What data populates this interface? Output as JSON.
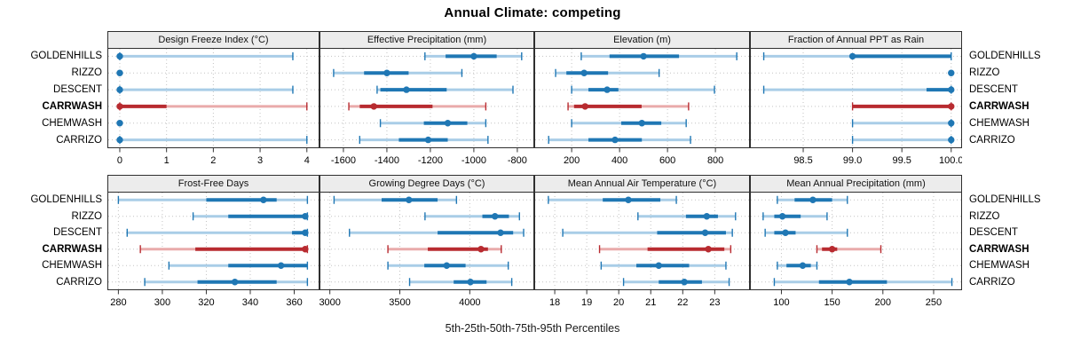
{
  "title": "Annual Climate: competing",
  "caption": "5th-25th-50th-75th-95th Percentiles",
  "sites": [
    "GOLDENHILLS",
    "RIZZO",
    "DESCENT",
    "CARRWASH",
    "CHEMWASH",
    "CARRIZO"
  ],
  "highlight_site": "CARRWASH",
  "colors": {
    "series_blue": "#1f77b4",
    "series_blue_band": "#a9cde7",
    "highlight_red": "#b82b30",
    "highlight_red_band": "#e9abab",
    "header_bg": "#ececec",
    "panel_border": "#2f2f2f",
    "grid": "#c3c3c3",
    "tick": "#333333"
  },
  "chart_data": [
    {
      "type": "percentile_range",
      "title": "Design Freeze Index (°C)",
      "row": "top",
      "percentiles": [
        "5th",
        "25th",
        "50th",
        "75th",
        "95th"
      ],
      "xlim": [
        -0.265,
        4.27
      ],
      "ticks": [
        0,
        1,
        2,
        3,
        4
      ],
      "tick_labels": [
        "0",
        "1",
        "2",
        "3",
        "4"
      ],
      "series": [
        {
          "name": "GOLDENHILLS",
          "values": [
            0,
            0,
            0,
            0,
            3.7
          ]
        },
        {
          "name": "RIZZO",
          "values": [
            0,
            0,
            0,
            0,
            0
          ]
        },
        {
          "name": "DESCENT",
          "values": [
            0,
            0,
            0,
            0,
            3.7
          ]
        },
        {
          "name": "CARRWASH",
          "values": [
            0,
            0,
            0,
            1,
            4
          ]
        },
        {
          "name": "CHEMWASH",
          "values": [
            0,
            0,
            0,
            0,
            0
          ]
        },
        {
          "name": "CARRIZO",
          "values": [
            0,
            0,
            0,
            0,
            4
          ]
        }
      ]
    },
    {
      "type": "percentile_range",
      "title": "Effective Precipitation (mm)",
      "row": "top",
      "percentiles": [
        "5th",
        "25th",
        "50th",
        "75th",
        "95th"
      ],
      "xlim": [
        -1710,
        -722
      ],
      "ticks": [
        -1600,
        -1400,
        -1200,
        -1000,
        -800
      ],
      "tick_labels": [
        "-1600",
        "-1400",
        "-1200",
        "-1000",
        "-800"
      ],
      "series": [
        {
          "name": "GOLDENHILLS",
          "values": [
            -1225,
            -1130,
            -1000,
            -895,
            -780
          ]
        },
        {
          "name": "RIZZO",
          "values": [
            -1645,
            -1505,
            -1400,
            -1300,
            -1055
          ]
        },
        {
          "name": "DESCENT",
          "values": [
            -1445,
            -1430,
            -1310,
            -1125,
            -820
          ]
        },
        {
          "name": "CARRWASH",
          "values": [
            -1575,
            -1525,
            -1460,
            -1190,
            -945
          ]
        },
        {
          "name": "CHEMWASH",
          "values": [
            -1430,
            -1230,
            -1120,
            -1030,
            -945
          ]
        },
        {
          "name": "CARRIZO",
          "values": [
            -1525,
            -1345,
            -1210,
            -1120,
            -935
          ]
        }
      ]
    },
    {
      "type": "percentile_range",
      "title": "Elevation (m)",
      "row": "top",
      "percentiles": [
        "5th",
        "25th",
        "50th",
        "75th",
        "95th"
      ],
      "xlim": [
        44,
        944
      ],
      "ticks": [
        200,
        400,
        600,
        800
      ],
      "tick_labels": [
        "200",
        "400",
        "600",
        "800"
      ],
      "series": [
        {
          "name": "GOLDENHILLS",
          "values": [
            240,
            358,
            500,
            648,
            889
          ]
        },
        {
          "name": "RIZZO",
          "values": [
            133,
            178,
            252,
            352,
            565
          ]
        },
        {
          "name": "DESCENT",
          "values": [
            200,
            270,
            348,
            395,
            796
          ]
        },
        {
          "name": "CARRWASH",
          "values": [
            185,
            210,
            256,
            492,
            688
          ]
        },
        {
          "name": "CHEMWASH",
          "values": [
            200,
            407,
            493,
            574,
            678
          ]
        },
        {
          "name": "CARRIZO",
          "values": [
            104,
            270,
            381,
            493,
            696
          ]
        }
      ]
    },
    {
      "type": "percentile_range",
      "title": "Fraction of Annual PPT as Rain",
      "row": "top",
      "percentiles": [
        "5th",
        "25th",
        "50th",
        "75th",
        "95th"
      ],
      "xlim": [
        97.96,
        100.11
      ],
      "ticks": [
        98.5,
        99.0,
        99.5,
        100.0
      ],
      "tick_labels": [
        "98.5",
        "99.0",
        "99.5",
        "100.0"
      ],
      "series": [
        {
          "name": "GOLDENHILLS",
          "values": [
            98.1,
            99.0,
            99.0,
            100.0,
            100.0
          ]
        },
        {
          "name": "RIZZO",
          "values": [
            100.0,
            100.0,
            100.0,
            100.0,
            100.0
          ]
        },
        {
          "name": "DESCENT",
          "values": [
            98.1,
            99.75,
            100.0,
            100.0,
            100.0
          ]
        },
        {
          "name": "CARRWASH",
          "values": [
            99.0,
            99.0,
            100.0,
            100.0,
            100.0
          ]
        },
        {
          "name": "CHEMWASH",
          "values": [
            99.0,
            100.0,
            100.0,
            100.0,
            100.0
          ]
        },
        {
          "name": "CARRIZO",
          "values": [
            99.0,
            100.0,
            100.0,
            100.0,
            100.0
          ]
        }
      ]
    },
    {
      "type": "percentile_range",
      "title": "Frost-Free Days",
      "row": "bottom",
      "percentiles": [
        "5th",
        "25th",
        "50th",
        "75th",
        "95th"
      ],
      "xlim": [
        275,
        371.5
      ],
      "ticks": [
        280,
        300,
        320,
        340,
        360
      ],
      "tick_labels": [
        "280",
        "300",
        "320",
        "340",
        "360"
      ],
      "series": [
        {
          "name": "GOLDENHILLS",
          "values": [
            280,
            320,
            346,
            352,
            366
          ]
        },
        {
          "name": "RIZZO",
          "values": [
            314,
            330,
            365,
            366,
            366
          ]
        },
        {
          "name": "DESCENT",
          "values": [
            284,
            359,
            365,
            366,
            366
          ]
        },
        {
          "name": "CARRWASH",
          "values": [
            290,
            315,
            365,
            366,
            366
          ]
        },
        {
          "name": "CHEMWASH",
          "values": [
            303,
            330,
            354,
            366,
            366
          ]
        },
        {
          "name": "CARRIZO",
          "values": [
            292,
            316,
            333,
            352,
            366
          ]
        }
      ]
    },
    {
      "type": "percentile_range",
      "title": "Growing Degree Days (°C)",
      "row": "bottom",
      "percentiles": [
        "5th",
        "25th",
        "50th",
        "75th",
        "95th"
      ],
      "xlim": [
        2926,
        4461
      ],
      "ticks": [
        3000,
        3500,
        4000
      ],
      "tick_labels": [
        "3000",
        "3500",
        "4000"
      ],
      "series": [
        {
          "name": "GOLDENHILLS",
          "values": [
            3030,
            3370,
            3565,
            3770,
            3905
          ]
        },
        {
          "name": "RIZZO",
          "values": [
            3680,
            4090,
            4180,
            4280,
            4355
          ]
        },
        {
          "name": "DESCENT",
          "values": [
            3140,
            3770,
            4220,
            4310,
            4385
          ]
        },
        {
          "name": "CARRWASH",
          "values": [
            3415,
            3700,
            4080,
            4130,
            4225
          ]
        },
        {
          "name": "CHEMWASH",
          "values": [
            3415,
            3675,
            3835,
            3970,
            4275
          ]
        },
        {
          "name": "CARRIZO",
          "values": [
            3570,
            3885,
            4005,
            4120,
            4300
          ]
        }
      ]
    },
    {
      "type": "percentile_range",
      "title": "Mean Annual Air Temperature (°C)",
      "row": "bottom",
      "percentiles": [
        "5th",
        "25th",
        "50th",
        "75th",
        "95th"
      ],
      "xlim": [
        17.36,
        24.1
      ],
      "ticks": [
        18,
        19,
        20,
        21,
        22,
        23
      ],
      "tick_labels": [
        "18",
        "19",
        "20",
        "21",
        "22",
        "23"
      ],
      "series": [
        {
          "name": "GOLDENHILLS",
          "values": [
            17.8,
            19.5,
            20.3,
            21.3,
            21.8
          ]
        },
        {
          "name": "RIZZO",
          "values": [
            20.6,
            22.1,
            22.75,
            23.1,
            23.65
          ]
        },
        {
          "name": "DESCENT",
          "values": [
            18.25,
            21.2,
            22.7,
            23.35,
            23.55
          ]
        },
        {
          "name": "CARRWASH",
          "values": [
            19.4,
            20.9,
            22.8,
            23.3,
            23.5
          ]
        },
        {
          "name": "CHEMWASH",
          "values": [
            19.45,
            20.55,
            21.25,
            22.2,
            23.35
          ]
        },
        {
          "name": "CARRIZO",
          "values": [
            20.15,
            21.25,
            22.05,
            22.6,
            23.45
          ]
        }
      ]
    },
    {
      "type": "percentile_range",
      "title": "Mean Annual Precipitation (mm)",
      "row": "bottom",
      "percentiles": [
        "5th",
        "25th",
        "50th",
        "75th",
        "95th"
      ],
      "xlim": [
        69,
        278
      ],
      "ticks": [
        100,
        150,
        200,
        250
      ],
      "tick_labels": [
        "100",
        "150",
        "200",
        "250"
      ],
      "series": [
        {
          "name": "GOLDENHILLS",
          "values": [
            96,
            113,
            131,
            150,
            165
          ]
        },
        {
          "name": "RIZZO",
          "values": [
            82,
            93,
            101,
            119,
            145
          ]
        },
        {
          "name": "DESCENT",
          "values": [
            84,
            93,
            104,
            114,
            165
          ]
        },
        {
          "name": "CARRWASH",
          "values": [
            135,
            140,
            150,
            155,
            198
          ]
        },
        {
          "name": "CHEMWASH",
          "values": [
            96,
            105,
            121,
            129,
            135
          ]
        },
        {
          "name": "CARRIZO",
          "values": [
            93,
            137,
            167,
            204,
            268
          ]
        }
      ]
    }
  ]
}
